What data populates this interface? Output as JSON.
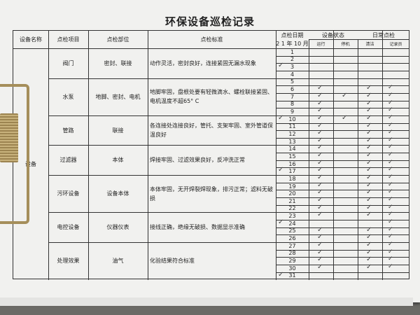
{
  "title": "环保设备巡检记录",
  "headers": {
    "name": "设备名称",
    "item": "点检项目",
    "part": "点检部位",
    "standard": "点检标准",
    "date": "点检日期",
    "year_month": "2 1 年 10 月",
    "status": "设备状态",
    "running": "运行",
    "stopped": "停机",
    "daily": "日常点检",
    "clean": "清洁",
    "recorder": "记录员"
  },
  "equipment_name": "设备",
  "groups": [
    {
      "item": "阀门",
      "part": "密封、联接",
      "standard": "动作灵活，密封良好，连接紧固无漏水现象",
      "days": [
        1,
        4
      ]
    },
    {
      "item": "水泵",
      "part": "地脚、密封、电机",
      "standard": "地脚牢固，盘根处要有轻微滴水、螺栓联接紧固、电机温度不超65° C",
      "days": [
        5,
        9
      ]
    },
    {
      "item": "管路",
      "part": "联接",
      "standard": "各连接处连接良好，管托、支架牢固、室外管道保温良好",
      "days": [
        10,
        13
      ]
    },
    {
      "item": "过滤器",
      "part": "本体",
      "standard": "焊接牢固、过滤效果良好，反冲洗正常",
      "days": [
        14,
        17
      ]
    },
    {
      "item": "污环设备",
      "part": "设备本体",
      "standard": "本体牢固，无开焊裂焊现象，排污正常；滤料无破损",
      "days": [
        18,
        22
      ]
    },
    {
      "item": "电控设备",
      "part": "仪器仪表",
      "standard": "接线正确，绝缘无破损、数据显示准确",
      "days": [
        23,
        26
      ]
    },
    {
      "item": "处理效果",
      "part": "油气",
      "standard": "化验结果符合标准",
      "days": [
        27,
        31
      ]
    }
  ],
  "days": [
    "1",
    "2",
    "3",
    "4",
    "5",
    "6",
    "7",
    "8",
    "9",
    "10",
    "11",
    "12",
    "13",
    "14",
    "15",
    "16",
    "17",
    "18",
    "19",
    "20",
    "21",
    "22",
    "23",
    "24",
    "25",
    "26",
    "27",
    "28",
    "29",
    "30",
    "31"
  ],
  "check_mark": "✓",
  "marks": {
    "date": [
      3,
      10,
      17,
      24,
      31
    ],
    "running": [
      6,
      7,
      8,
      9,
      10,
      11,
      12,
      13,
      14,
      15,
      16,
      17,
      18,
      19,
      20,
      21,
      22,
      23,
      25,
      26,
      27,
      28,
      29,
      30
    ],
    "stopped": [
      7,
      10
    ],
    "clean": [
      6,
      7,
      8,
      9,
      10,
      11,
      12,
      13,
      14,
      15,
      16,
      17,
      18,
      19,
      20,
      21,
      22,
      23,
      25,
      26,
      27,
      28,
      29,
      30
    ],
    "recorder": [
      6,
      7,
      8,
      9,
      10,
      11,
      12,
      13,
      14,
      15,
      16,
      17,
      18,
      19,
      20,
      21,
      22,
      23,
      24,
      25,
      26,
      27,
      28,
      29,
      30
    ]
  }
}
